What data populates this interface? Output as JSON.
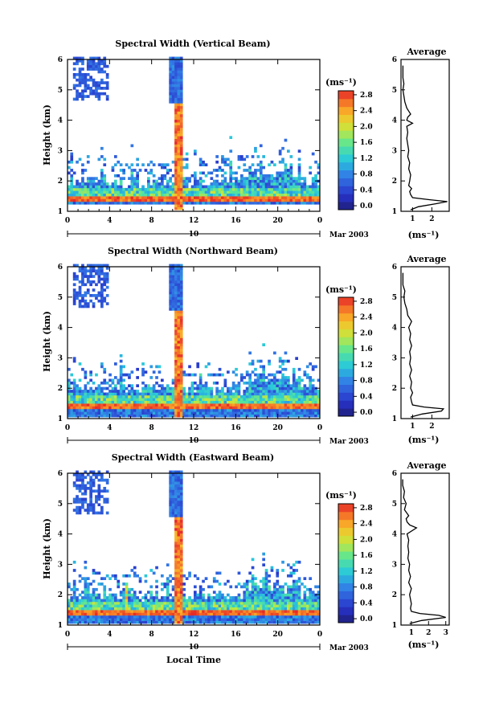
{
  "chart_data": [
    {
      "type": "heatmap",
      "title": "Spectral Width (Vertical Beam)",
      "ylabel": "Height (km)",
      "xticks": [
        "0",
        "4",
        "8",
        "12",
        "16",
        "20",
        "0"
      ],
      "xlim": [
        0,
        24
      ],
      "yticks": [
        "1",
        "2",
        "3",
        "4",
        "5",
        "6"
      ],
      "ylim": [
        1,
        6
      ],
      "date_label": "10",
      "date_right": "Mar 2003",
      "colorbar": {
        "unit": "(ms⁻¹)",
        "labels": [
          "0.0",
          "0.4",
          "0.8",
          "1.2",
          "1.6",
          "2.0",
          "2.4",
          "2.8"
        ],
        "range": [
          0,
          3.0
        ]
      },
      "profile": {
        "title": "Average",
        "xlabel": "(ms⁻¹)",
        "xticks": [
          "1",
          "2"
        ],
        "xlim": [
          0.4,
          2.9
        ],
        "yticks": [
          "1",
          "2",
          "3",
          "4",
          "5",
          "6"
        ],
        "heights": [
          1.05,
          1.15,
          1.25,
          1.32,
          1.38,
          1.45,
          1.55,
          1.65,
          1.75,
          1.85,
          2.0,
          2.2,
          2.4,
          2.6,
          2.8,
          3.0,
          3.2,
          3.4,
          3.6,
          3.8,
          3.9,
          4.0,
          4.1,
          4.2,
          4.3,
          4.4,
          4.6,
          4.8,
          5.0,
          5.2,
          5.4,
          5.6,
          5.8
        ],
        "values": [
          0.9,
          1.3,
          2.2,
          2.8,
          1.9,
          1.0,
          0.9,
          0.85,
          0.95,
          0.8,
          0.85,
          0.9,
          0.8,
          0.85,
          0.75,
          0.8,
          0.75,
          0.7,
          0.75,
          0.7,
          1.0,
          0.7,
          0.75,
          0.9,
          0.8,
          0.7,
          0.6,
          0.55,
          0.5,
          0.55,
          0.5,
          0.5,
          0.5
        ]
      }
    },
    {
      "type": "heatmap",
      "title": "Spectral Width (Northward Beam)",
      "ylabel": "Height (km)",
      "xticks": [
        "0",
        "4",
        "8",
        "12",
        "16",
        "20",
        "0"
      ],
      "xlim": [
        0,
        24
      ],
      "yticks": [
        "1",
        "2",
        "3",
        "4",
        "5",
        "6"
      ],
      "ylim": [
        1,
        6
      ],
      "date_label": "10",
      "date_right": "Mar 2003",
      "colorbar": {
        "unit": "(ms⁻¹)",
        "labels": [
          "0.0",
          "0.4",
          "0.8",
          "1.2",
          "1.6",
          "2.0",
          "2.4",
          "2.8"
        ],
        "range": [
          0,
          3.0
        ]
      },
      "profile": {
        "title": "Average",
        "xlabel": "(ms⁻¹)",
        "xticks": [
          "1",
          "2"
        ],
        "xlim": [
          0.4,
          2.9
        ],
        "yticks": [
          "1",
          "2",
          "3",
          "4",
          "5",
          "6"
        ],
        "heights": [
          1.05,
          1.15,
          1.25,
          1.32,
          1.38,
          1.45,
          1.55,
          1.7,
          1.85,
          2.0,
          2.2,
          2.4,
          2.6,
          2.8,
          3.0,
          3.2,
          3.4,
          3.6,
          3.8,
          4.0,
          4.2,
          4.3,
          4.4,
          4.6,
          4.8,
          5.0,
          5.2,
          5.4,
          5.6,
          5.8
        ],
        "values": [
          0.9,
          1.5,
          2.5,
          2.6,
          1.6,
          1.0,
          0.95,
          0.9,
          1.0,
          0.9,
          0.95,
          0.85,
          0.95,
          0.85,
          0.9,
          0.85,
          0.95,
          0.85,
          0.9,
          0.8,
          0.95,
          0.85,
          0.75,
          0.7,
          0.6,
          0.55,
          0.6,
          0.5,
          0.5,
          0.5
        ]
      }
    },
    {
      "type": "heatmap",
      "title": "Spectral Width (Eastward Beam)",
      "ylabel": "Height (km)",
      "xlabel": "Local Time",
      "xticks": [
        "0",
        "4",
        "8",
        "12",
        "16",
        "20",
        "0"
      ],
      "xlim": [
        0,
        24
      ],
      "yticks": [
        "1",
        "2",
        "3",
        "4",
        "5",
        "6"
      ],
      "ylim": [
        1,
        6
      ],
      "date_label": "10",
      "date_right": "Mar 2003",
      "colorbar": {
        "unit": "(ms⁻¹)",
        "labels": [
          "0.0",
          "0.4",
          "0.8",
          "1.2",
          "1.6",
          "2.0",
          "2.4",
          "2.8"
        ],
        "range": [
          0,
          3.0
        ]
      },
      "profile": {
        "title": "Average",
        "xlabel": "(ms⁻¹)",
        "xticks": [
          "1",
          "2",
          "3"
        ],
        "xlim": [
          0.4,
          3.2
        ],
        "yticks": [
          "1",
          "2",
          "3",
          "4",
          "5",
          "6"
        ],
        "heights": [
          1.05,
          1.15,
          1.25,
          1.32,
          1.38,
          1.45,
          1.55,
          1.7,
          1.85,
          2.0,
          2.2,
          2.4,
          2.6,
          2.8,
          3.0,
          3.2,
          3.4,
          3.6,
          3.8,
          4.0,
          4.2,
          4.3,
          4.4,
          4.5,
          4.6,
          4.8,
          5.0,
          5.2,
          5.4,
          5.6,
          5.8
        ],
        "values": [
          0.9,
          1.6,
          3.0,
          2.6,
          1.5,
          1.0,
          0.95,
          1.0,
          0.95,
          0.9,
          1.0,
          0.85,
          0.95,
          0.85,
          0.9,
          0.8,
          0.85,
          0.8,
          0.85,
          0.75,
          1.3,
          0.9,
          0.75,
          0.7,
          0.85,
          0.6,
          0.7,
          0.55,
          0.6,
          0.5,
          0.5
        ]
      }
    }
  ]
}
